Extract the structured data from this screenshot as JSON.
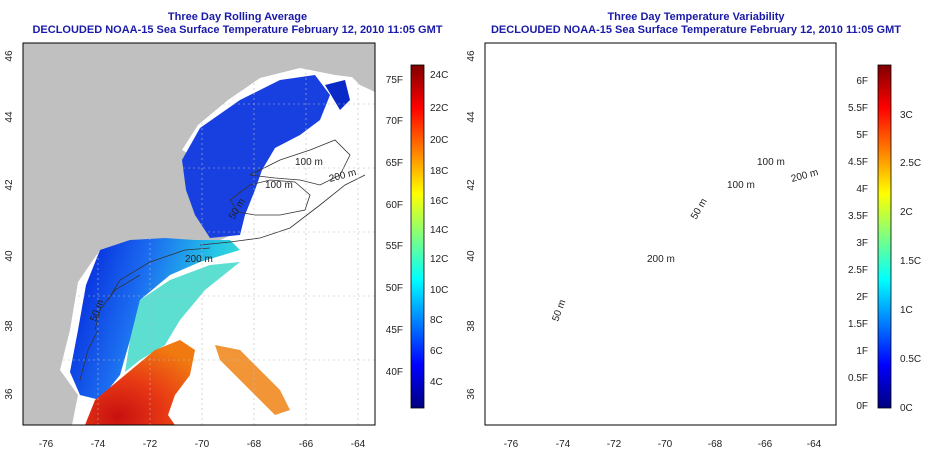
{
  "left_panel": {
    "title1": "Three Day Rolling Average",
    "title2": "DECLOUDED NOAA-15 Sea Surface Temperature February 12, 2010 11:05 GMT",
    "lat_ticks": [
      "46",
      "44",
      "42",
      "40",
      "38",
      "36"
    ],
    "lon_ticks": [
      "-76",
      "-74",
      "-72",
      "-70",
      "-68",
      "-66",
      "-64"
    ],
    "contour_labels": [
      "100 m",
      "50 m",
      "100 m",
      "200 m",
      "200 m",
      "50 m"
    ],
    "colorbar": {
      "f_labels": [
        "75F",
        "70F",
        "65F",
        "60F",
        "55F",
        "50F",
        "45F",
        "40F"
      ],
      "c_labels": [
        "24C",
        "22C",
        "20C",
        "18C",
        "16C",
        "14C",
        "12C",
        "10C",
        "8C",
        "6C",
        "4C"
      ]
    }
  },
  "right_panel": {
    "title1": "Three Day Temperature Variability",
    "title2": "DECLOUDED NOAA-15 Sea Surface Temperature February 12, 2010 11:05 GMT",
    "lat_ticks": [
      "46",
      "44",
      "42",
      "40",
      "38",
      "36"
    ],
    "lon_ticks": [
      "-76",
      "-74",
      "-72",
      "-70",
      "-68",
      "-66",
      "-64"
    ],
    "contour_labels": [
      "100 m",
      "50 m",
      "100 m",
      "200 m",
      "200 m",
      "50 m"
    ],
    "colorbar": {
      "f_labels": [
        "6F",
        "5.5F",
        "5F",
        "4.5F",
        "4F",
        "3.5F",
        "3F",
        "2.5F",
        "2F",
        "1.5F",
        "1F",
        "0.5F",
        "0F"
      ],
      "c_labels": [
        "3C",
        "2.5C",
        "2C",
        "1.5C",
        "1C",
        "0.5C",
        "0C"
      ]
    }
  },
  "colors": {
    "land": "#c0c0c0",
    "jet": [
      "#00007f",
      "#0000ff",
      "#007fff",
      "#00ffff",
      "#7fff7f",
      "#ffff00",
      "#ff7f00",
      "#ff0000",
      "#7f0000"
    ],
    "title": "#1a1aa8"
  }
}
